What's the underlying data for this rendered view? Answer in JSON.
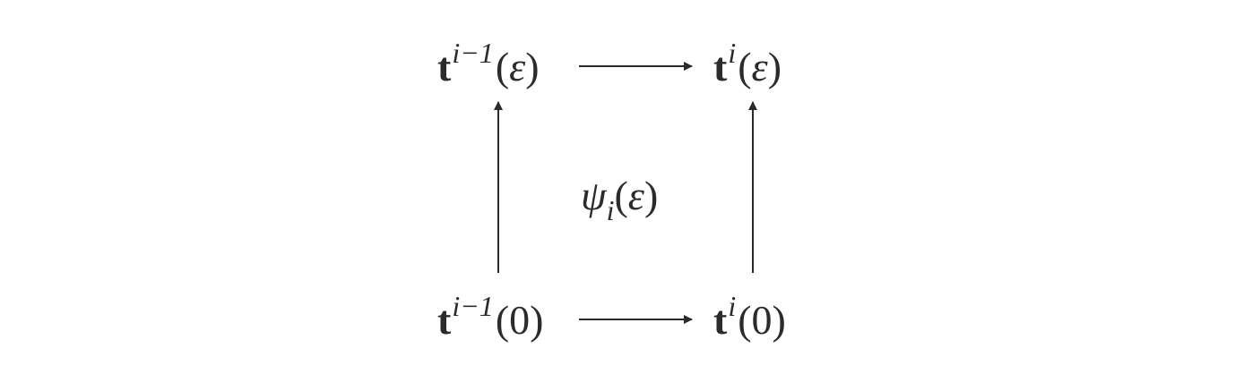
{
  "diagram": {
    "nodes": {
      "top_left": {
        "base": "t",
        "superscript": "i−1",
        "argument": "ε"
      },
      "top_right": {
        "base": "t",
        "superscript": "i",
        "argument": "ε"
      },
      "bottom_left": {
        "base": "t",
        "superscript": "i−1",
        "argument": "0"
      },
      "bottom_right": {
        "base": "t",
        "superscript": "i",
        "argument": "0"
      }
    },
    "center_label": {
      "symbol": "ψ",
      "subscript": "i",
      "argument": "ε"
    },
    "colors": {
      "ink": "#2b2b2b",
      "background": "#ffffff"
    }
  }
}
